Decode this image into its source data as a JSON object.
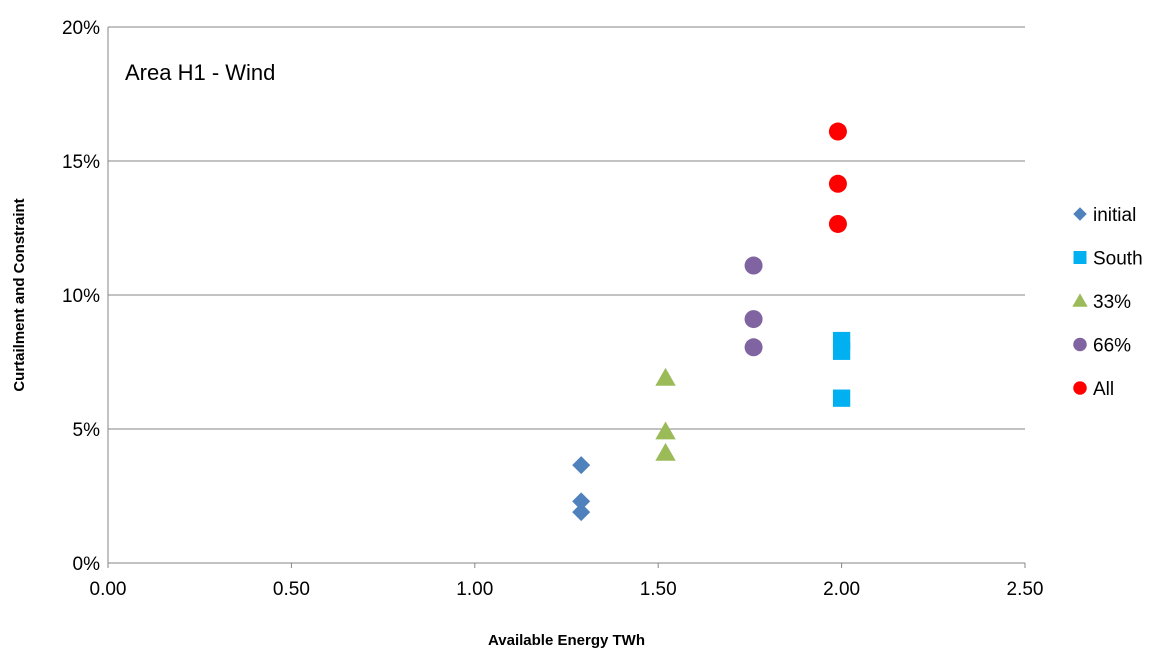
{
  "chart_data": {
    "type": "scatter",
    "annotation": "Area H1 - Wind",
    "xlabel": "Available Energy TWh",
    "ylabel": "Curtailment and Constraint",
    "xlim": [
      0,
      2.5
    ],
    "ylim": [
      0,
      0.2
    ],
    "x_ticks": [
      "0.00",
      "0.50",
      "1.00",
      "1.50",
      "2.00",
      "2.50"
    ],
    "y_ticks": [
      "0%",
      "5%",
      "10%",
      "15%",
      "20%"
    ],
    "grid": "horizontal",
    "legend_position": "right",
    "series": [
      {
        "name": "initial",
        "marker": "diamond",
        "color": "#4F81BD",
        "points": [
          [
            1.29,
            0.0365
          ],
          [
            1.29,
            0.023
          ],
          [
            1.29,
            0.019
          ]
        ]
      },
      {
        "name": "South",
        "marker": "square",
        "color": "#00B0F0",
        "points": [
          [
            2.0,
            0.083
          ],
          [
            2.0,
            0.079
          ],
          [
            2.0,
            0.0615
          ]
        ]
      },
      {
        "name": "33%",
        "marker": "triangle",
        "color": "#9BBB59",
        "points": [
          [
            1.52,
            0.069
          ],
          [
            1.52,
            0.049
          ],
          [
            1.52,
            0.041
          ]
        ]
      },
      {
        "name": "66%",
        "marker": "circle",
        "color": "#8064A2",
        "points": [
          [
            1.76,
            0.111
          ],
          [
            1.76,
            0.091
          ],
          [
            1.76,
            0.0805
          ]
        ]
      },
      {
        "name": "All",
        "marker": "circle",
        "color": "#FF0000",
        "points": [
          [
            1.99,
            0.161
          ],
          [
            1.99,
            0.1415
          ],
          [
            1.99,
            0.1265
          ]
        ]
      }
    ]
  }
}
